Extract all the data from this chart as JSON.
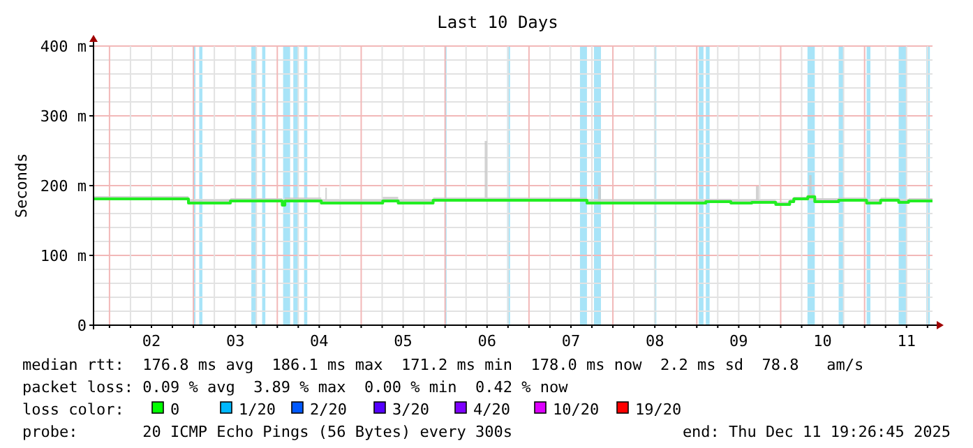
{
  "chart_data": {
    "type": "step",
    "title": "Last 10 Days",
    "ylabel": "Seconds",
    "xlim": [
      "2025-12-01T19:26",
      "2025-12-11T19:26"
    ],
    "xticks": [
      {
        "value": "2025-12-02T00:00",
        "label": null
      },
      {
        "value": "2025-12-02T06:00",
        "label": null
      },
      {
        "value": "2025-12-02T12:00",
        "label": "02"
      },
      {
        "value": "2025-12-02T18:00",
        "label": null
      },
      {
        "value": "2025-12-03T00:00",
        "label": null
      },
      {
        "value": "2025-12-03T06:00",
        "label": null
      },
      {
        "value": "2025-12-03T12:00",
        "label": "03"
      },
      {
        "value": "2025-12-03T18:00",
        "label": null
      },
      {
        "value": "2025-12-04T00:00",
        "label": null
      },
      {
        "value": "2025-12-04T06:00",
        "label": null
      },
      {
        "value": "2025-12-04T12:00",
        "label": "04"
      },
      {
        "value": "2025-12-04T18:00",
        "label": null
      },
      {
        "value": "2025-12-05T00:00",
        "label": null
      },
      {
        "value": "2025-12-05T06:00",
        "label": null
      },
      {
        "value": "2025-12-05T12:00",
        "label": "05"
      },
      {
        "value": "2025-12-05T18:00",
        "label": null
      },
      {
        "value": "2025-12-06T00:00",
        "label": null
      },
      {
        "value": "2025-12-06T06:00",
        "label": null
      },
      {
        "value": "2025-12-06T12:00",
        "label": "06"
      },
      {
        "value": "2025-12-06T18:00",
        "label": null
      },
      {
        "value": "2025-12-07T00:00",
        "label": null
      },
      {
        "value": "2025-12-07T06:00",
        "label": null
      },
      {
        "value": "2025-12-07T12:00",
        "label": "07"
      },
      {
        "value": "2025-12-07T18:00",
        "label": null
      },
      {
        "value": "2025-12-08T00:00",
        "label": null
      },
      {
        "value": "2025-12-08T06:00",
        "label": null
      },
      {
        "value": "2025-12-08T12:00",
        "label": "08"
      },
      {
        "value": "2025-12-08T18:00",
        "label": null
      },
      {
        "value": "2025-12-09T00:00",
        "label": null
      },
      {
        "value": "2025-12-09T06:00",
        "label": null
      },
      {
        "value": "2025-12-09T12:00",
        "label": "09"
      },
      {
        "value": "2025-12-09T18:00",
        "label": null
      },
      {
        "value": "2025-12-10T00:00",
        "label": null
      },
      {
        "value": "2025-12-10T06:00",
        "label": null
      },
      {
        "value": "2025-12-10T12:00",
        "label": "10"
      },
      {
        "value": "2025-12-10T18:00",
        "label": null
      },
      {
        "value": "2025-12-11T00:00",
        "label": null
      },
      {
        "value": "2025-12-11T06:00",
        "label": null
      },
      {
        "value": "2025-12-11T12:00",
        "label": "11"
      },
      {
        "value": "2025-12-11T18:00",
        "label": null
      }
    ],
    "ylim": [
      0,
      400
    ],
    "yticks": [
      0,
      {
        "value": 20,
        "label": null
      },
      {
        "value": 40,
        "label": null
      },
      {
        "value": 60,
        "label": null
      },
      {
        "value": 80,
        "label": null
      },
      {
        "value": 100,
        "label": "100 m"
      },
      {
        "value": 120,
        "label": null
      },
      {
        "value": 140,
        "label": null
      },
      {
        "value": 160,
        "label": null
      },
      {
        "value": 180,
        "label": null
      },
      {
        "value": 200,
        "label": "200 m"
      },
      {
        "value": 220,
        "label": null
      },
      {
        "value": 240,
        "label": null
      },
      {
        "value": 260,
        "label": null
      },
      {
        "value": 280,
        "label": null
      },
      {
        "value": 300,
        "label": "300 m"
      },
      {
        "value": 320,
        "label": null
      },
      {
        "value": 340,
        "label": null
      },
      {
        "value": 360,
        "label": null
      },
      {
        "value": 380,
        "label": null
      },
      {
        "value": 400,
        "label": "400 m"
      }
    ],
    "grid": true,
    "series": [
      {
        "color": "#22ee22",
        "x": [
          "2025-12-01T19:30",
          "2025-12-02T22:35",
          "2025-12-03T10:35",
          "2025-12-04T01:25",
          "2025-12-04T02:10",
          "2025-12-04T12:35",
          "2025-12-04T13:45",
          "2025-12-04T14:10",
          "2025-12-05T06:10",
          "2025-12-05T10:35",
          "2025-12-05T20:35",
          "2025-12-06T11:20",
          "2025-12-06T12:00",
          "2025-12-07T16:35",
          "2025-12-07T19:45",
          "2025-12-07T20:35",
          "2025-12-09T02:35",
          "2025-12-09T09:45",
          "2025-12-09T15:45",
          "2025-12-09T16:55",
          "2025-12-09T17:45",
          "2025-12-09T22:35",
          "2025-12-10T02:35",
          "2025-12-10T03:45",
          "2025-12-10T07:45",
          "2025-12-10T08:10",
          "2025-12-10T08:50",
          "2025-12-10T09:45",
          "2025-12-10T16:35",
          "2025-12-11T00:35",
          "2025-12-11T04:35",
          "2025-12-11T09:45",
          "2025-12-11T12:35",
          "2025-12-11T19:25"
        ],
        "values": [
          181,
          175,
          178,
          172,
          178,
          175,
          175,
          175,
          178,
          175,
          179,
          179,
          179,
          175,
          175,
          175,
          177,
          175,
          176,
          176,
          176,
          173,
          177,
          181,
          184,
          184,
          184,
          177,
          179,
          175,
          179,
          176,
          178,
          178
        ],
        "lower": [
          179,
          173,
          176,
          170,
          176,
          173,
          173,
          173,
          176,
          173,
          177,
          177,
          177,
          173,
          173,
          173,
          175,
          173,
          174,
          174,
          174,
          171,
          175,
          179,
          180,
          180,
          180,
          175,
          177,
          173,
          177,
          174,
          176,
          176
        ],
        "upper": [
          185,
          180,
          182,
          177,
          183,
          180,
          197,
          180,
          184,
          180,
          183,
          264,
          183,
          180,
          198,
          180,
          181,
          180,
          180,
          199,
          180,
          177,
          181,
          184,
          188,
          215,
          188,
          182,
          183,
          180,
          183,
          180,
          182,
          182
        ]
      }
    ],
    "bands": [
      {
        "axis": "x",
        "from": "2025-12-02T23:55",
        "to": "2025-12-03T00:35",
        "color": "#a8e4f8"
      },
      {
        "axis": "x",
        "from": "2025-12-03T01:40",
        "to": "2025-12-03T02:35",
        "color": "#a8e4f8"
      },
      {
        "axis": "x",
        "from": "2025-12-03T16:35",
        "to": "2025-12-03T18:05",
        "color": "#a8e4f8"
      },
      {
        "axis": "x",
        "from": "2025-12-03T19:40",
        "to": "2025-12-03T20:35",
        "color": "#a8e4f8"
      },
      {
        "axis": "x",
        "from": "2025-12-04T01:40",
        "to": "2025-12-04T03:40",
        "color": "#a8e4f8"
      },
      {
        "axis": "x",
        "from": "2025-12-04T04:35",
        "to": "2025-12-04T05:55",
        "color": "#a8e4f8"
      },
      {
        "axis": "x",
        "from": "2025-12-04T07:40",
        "to": "2025-12-04T08:35",
        "color": "#a8e4f8"
      },
      {
        "axis": "x",
        "from": "2025-12-05T23:55",
        "to": "2025-12-06T00:25",
        "color": "#a8e4f8"
      },
      {
        "axis": "x",
        "from": "2025-12-06T17:45",
        "to": "2025-12-06T18:35",
        "color": "#a8e4f8"
      },
      {
        "axis": "x",
        "from": "2025-12-07T14:35",
        "to": "2025-12-07T16:35",
        "color": "#a8e4f8"
      },
      {
        "axis": "x",
        "from": "2025-12-07T18:35",
        "to": "2025-12-07T20:35",
        "color": "#a8e4f8"
      },
      {
        "axis": "x",
        "from": "2025-12-08T11:45",
        "to": "2025-12-08T12:25",
        "color": "#a8e4f8"
      },
      {
        "axis": "x",
        "from": "2025-12-09T00:35",
        "to": "2025-12-09T01:55",
        "color": "#a8e4f8"
      },
      {
        "axis": "x",
        "from": "2025-12-09T02:35",
        "to": "2025-12-09T03:40",
        "color": "#a8e4f8"
      },
      {
        "axis": "x",
        "from": "2025-12-10T07:40",
        "to": "2025-12-10T09:45",
        "color": "#a8e4f8"
      },
      {
        "axis": "x",
        "from": "2025-12-10T16:35",
        "to": "2025-12-10T17:55",
        "color": "#a8e4f8"
      },
      {
        "axis": "x",
        "from": "2025-12-11T00:35",
        "to": "2025-12-11T01:40",
        "color": "#a8e4f8"
      },
      {
        "axis": "x",
        "from": "2025-12-11T09:45",
        "to": "2025-12-11T11:55",
        "color": "#a8e4f8"
      },
      {
        "axis": "x",
        "from": "2025-12-11T17:40",
        "to": "2025-12-11T18:40",
        "color": "#a8e4f8"
      }
    ],
    "annotations": [
      "median rtt:  176.8 ms avg  186.1 ms max  171.2 ms min  178.0 ms now  2.2 ms sd  78.8   am/s",
      "packet loss: 0.09 % avg  3.89 % max  0.00 % min  0.42 % now",
      "loss color:",
      "0",
      "1/20",
      "2/20",
      "3/20",
      "4/20",
      "10/20",
      "19/20",
      "probe:       20 ICMP Echo Pings (56 Bytes) every 300s",
      "end: Thu Dec 11 19:26:45 2025"
    ]
  }
}
